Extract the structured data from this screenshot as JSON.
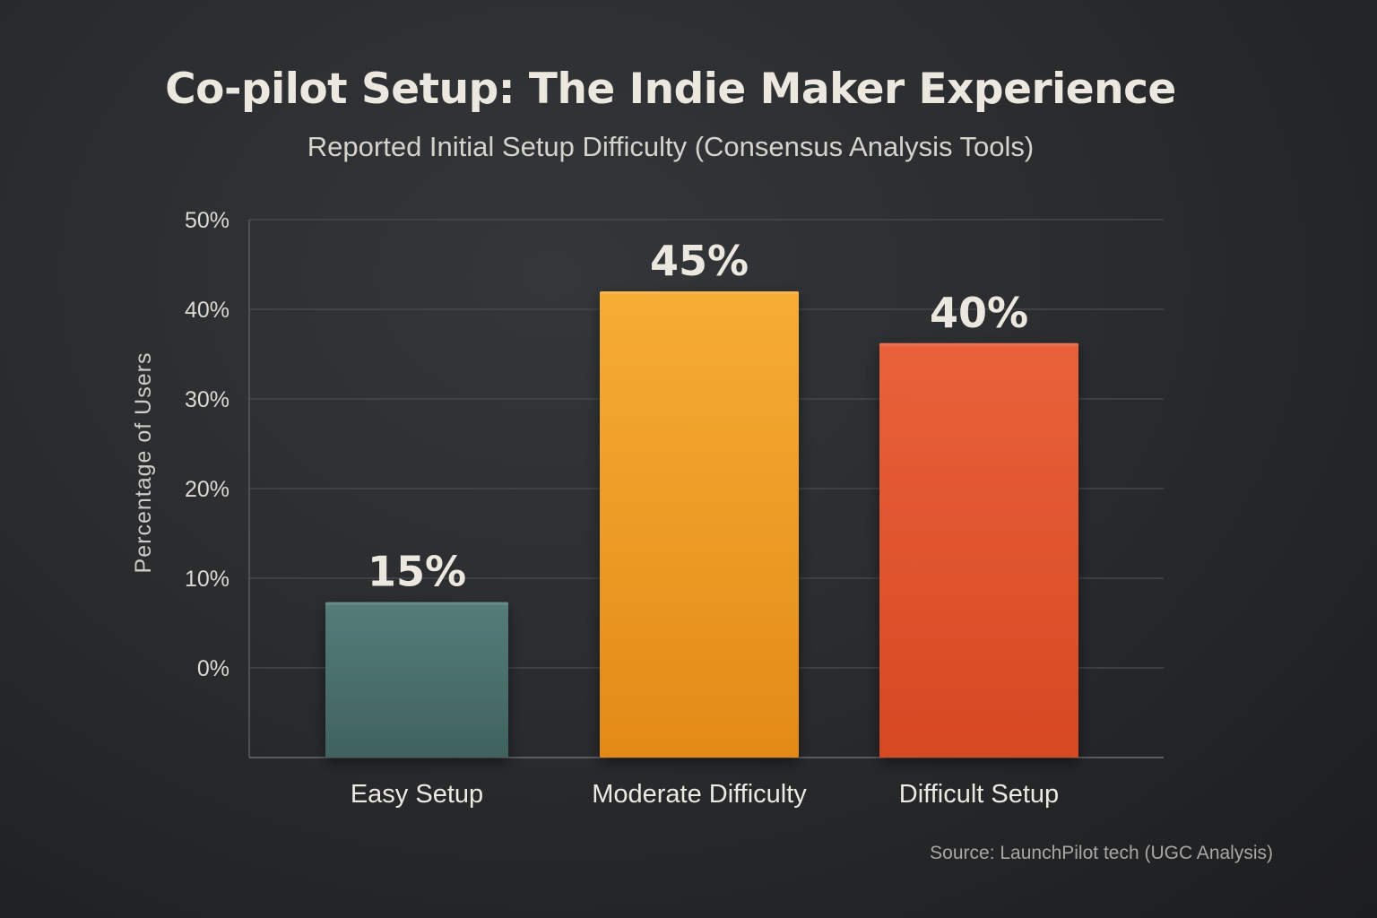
{
  "chart_data": {
    "type": "bar",
    "title": "Co-pilot Setup: The Indie Maker Experience",
    "subtitle": "Reported Initial Setup Difficulty (Consensus Analysis Tools)",
    "xlabel": "",
    "ylabel": "Percentage of Users",
    "categories": [
      "Easy Setup",
      "Moderate Difficulty",
      "Difficult Setup"
    ],
    "values": [
      15,
      45,
      40
    ],
    "data_labels": [
      "15%",
      "45%",
      "40%"
    ],
    "colors": [
      "#4a706d",
      "#f2a02a",
      "#e2562b"
    ],
    "ylim": [
      0,
      50
    ],
    "yticks": [
      0,
      10,
      20,
      30,
      40,
      50
    ],
    "ytick_labels": [
      "0%",
      "10%",
      "20%",
      "30%",
      "40%",
      "50%"
    ],
    "grid": true,
    "legend": "none",
    "source": "Source: LaunchPilot tech (UGC Analysis)"
  }
}
